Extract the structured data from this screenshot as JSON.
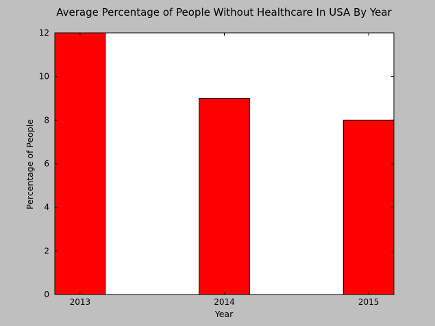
{
  "chart_data": {
    "type": "bar",
    "title": "Average Percentage of People Without Healthcare In USA By Year",
    "xlabel": "Year",
    "ylabel": "Percentage of People",
    "categories": [
      "2013",
      "2014",
      "2015"
    ],
    "values": [
      12,
      9,
      8
    ],
    "ylim": [
      0,
      12
    ],
    "yticks": [
      "0",
      "2",
      "4",
      "6",
      "8",
      "10",
      "12"
    ],
    "grid": false,
    "legend": "none",
    "colors": {
      "bar": "#ff0000",
      "bar_edge": "#000000",
      "plot_background": "#ffffff",
      "figure_background": "#bfbfbf"
    }
  }
}
